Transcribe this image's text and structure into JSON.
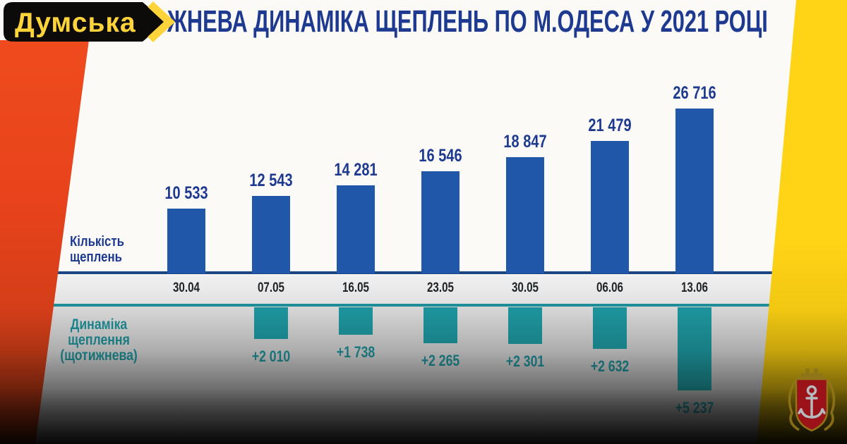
{
  "branding": {
    "logo_text": "Думська"
  },
  "title": "ЖНЕВА ДИНАМІКА ЩЕПЛЕНЬ ПО М.ОДЕСА У 2021 РОЦІ",
  "labels": {
    "count": [
      "Кількість",
      "щеплень"
    ],
    "delta": [
      "Динаміка",
      "щеплення",
      "(щотижнева)"
    ]
  },
  "chart_data": {
    "type": "bar",
    "title": "ЖНЕВА ДИНАМІКА ЩЕПЛЕНЬ ПО М.ОДЕСА У 2021 РОЦІ",
    "categories": [
      "30.04",
      "07.05",
      "16.05",
      "23.05",
      "30.05",
      "06.06",
      "13.06"
    ],
    "series": [
      {
        "name": "Кількість щеплень",
        "direction": "up",
        "color": "#2157a8",
        "values": [
          10533,
          12543,
          14281,
          16546,
          18847,
          21479,
          26716
        ],
        "value_labels": [
          "10 533",
          "12 543",
          "14 281",
          "16 546",
          "18 847",
          "21 479",
          "26 716"
        ]
      },
      {
        "name": "Динаміка щеплення (щотижнева)",
        "direction": "down",
        "color": "#1d929a",
        "values": [
          null,
          2010,
          1738,
          2265,
          2301,
          2632,
          5237
        ],
        "value_labels": [
          "",
          "+2 010",
          "+1 738",
          "+2 265",
          "+2 301",
          "+2 632",
          "+5 237"
        ]
      }
    ],
    "ylim_up": [
      0,
      26716
    ],
    "ylim_down": [
      0,
      5237
    ],
    "grid": false,
    "legend": "none"
  },
  "colors": {
    "title_navy": "#1d3a90",
    "bar_blue": "#2157a8",
    "bar_teal": "#1d929a",
    "axis_line_navy": "#1b4583",
    "axis_line_teal": "#1f8d95",
    "date_text": "#1f2326",
    "stripe_red": "#e8431c",
    "stripe_yellow": "#ffd316",
    "logo_bg": "#0c0b09",
    "logo_text_color": "#ffd43a",
    "band_gray": "#e9e9e9"
  },
  "emblem": {
    "name": "odesa-city-coat-of-arms",
    "shield_color": "#9b1218",
    "anchor_color": "#b6babd",
    "gold_color": "#8f7518"
  }
}
